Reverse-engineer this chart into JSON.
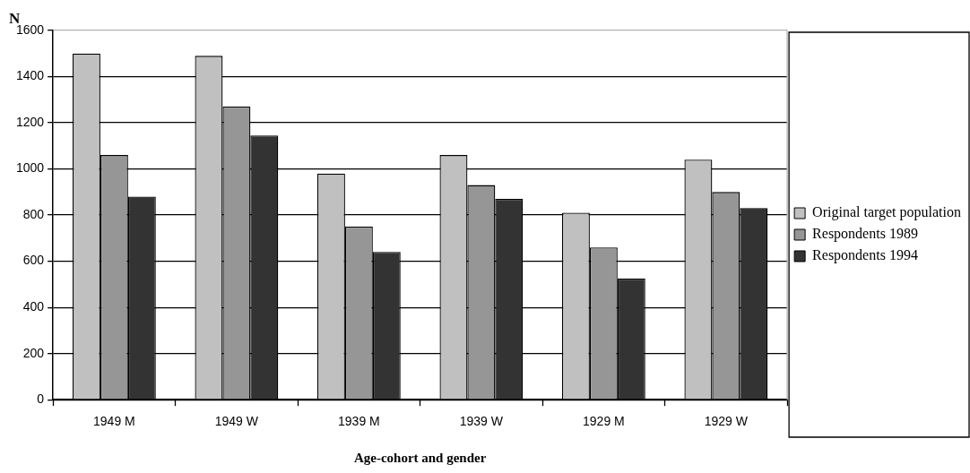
{
  "chart_data": {
    "type": "bar",
    "xlabel": "Age-cohort and gender",
    "ylabel": "N",
    "categories": [
      "1949 M",
      "1949 W",
      "1939 M",
      "1939 W",
      "1929 M",
      "1929 W"
    ],
    "series": [
      {
        "name": "Original target population",
        "color": "#c0c0c0",
        "values": [
          1500,
          1490,
          980,
          1060,
          810,
          1040
        ]
      },
      {
        "name": "Respondents 1989",
        "color": "#969696",
        "values": [
          1060,
          1270,
          750,
          930,
          660,
          900
        ]
      },
      {
        "name": "Respondents 1994",
        "color": "#333333",
        "values": [
          880,
          1145,
          640,
          870,
          525,
          830
        ]
      }
    ],
    "ylim": [
      0,
      1600
    ],
    "yticks": [
      0,
      200,
      400,
      600,
      800,
      1000,
      1200,
      1400,
      1600
    ],
    "grid": "y",
    "legend": "right"
  }
}
